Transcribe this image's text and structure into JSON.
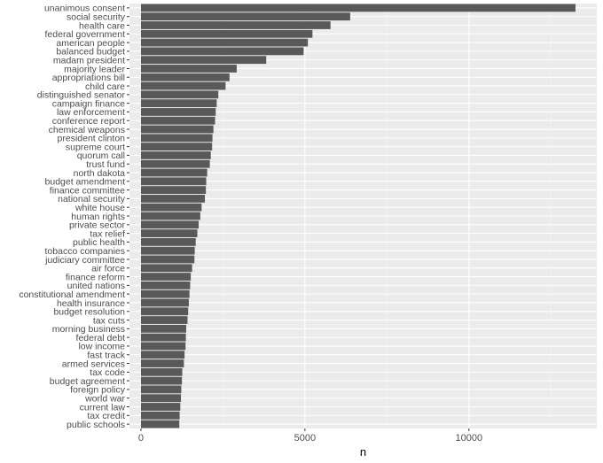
{
  "chart_data": {
    "type": "bar",
    "orientation": "horizontal",
    "title": "",
    "xlabel": "n",
    "ylabel": "",
    "xlim": [
      -350,
      13900
    ],
    "xticks": [
      0,
      5000,
      10000
    ],
    "grid": true,
    "categories": [
      "unanimous consent",
      "social security",
      "health care",
      "federal government",
      "american people",
      "balanced budget",
      "madam president",
      "majority leader",
      "appropriations bill",
      "child care",
      "distinguished senator",
      "campaign finance",
      "law enforcement",
      "conference report",
      "chemical weapons",
      "president clinton",
      "supreme court",
      "quorum call",
      "trust fund",
      "north dakota",
      "budget amendment",
      "finance committee",
      "national security",
      "white house",
      "human rights",
      "private sector",
      "tax relief",
      "public health",
      "tobacco companies",
      "judiciary committee",
      "air force",
      "finance reform",
      "united nations",
      "constitutional amendment",
      "health insurance",
      "budget resolution",
      "tax cuts",
      "morning business",
      "federal debt",
      "low income",
      "fast track",
      "armed services",
      "tax code",
      "budget agreement",
      "foreign policy",
      "world war",
      "current law",
      "tax credit",
      "public schools"
    ],
    "values": [
      13250,
      6380,
      5780,
      5230,
      5090,
      4960,
      3820,
      2920,
      2700,
      2580,
      2360,
      2310,
      2280,
      2260,
      2210,
      2180,
      2170,
      2130,
      2100,
      2020,
      1990,
      1980,
      1950,
      1850,
      1810,
      1760,
      1720,
      1670,
      1640,
      1630,
      1560,
      1520,
      1500,
      1480,
      1460,
      1440,
      1420,
      1380,
      1370,
      1360,
      1330,
      1310,
      1260,
      1250,
      1230,
      1220,
      1200,
      1180,
      1170
    ],
    "colors": {
      "bar": "#595959",
      "panel": "#ebebeb",
      "grid_major": "#ffffff",
      "grid_minor": "#f5f5f5"
    }
  }
}
